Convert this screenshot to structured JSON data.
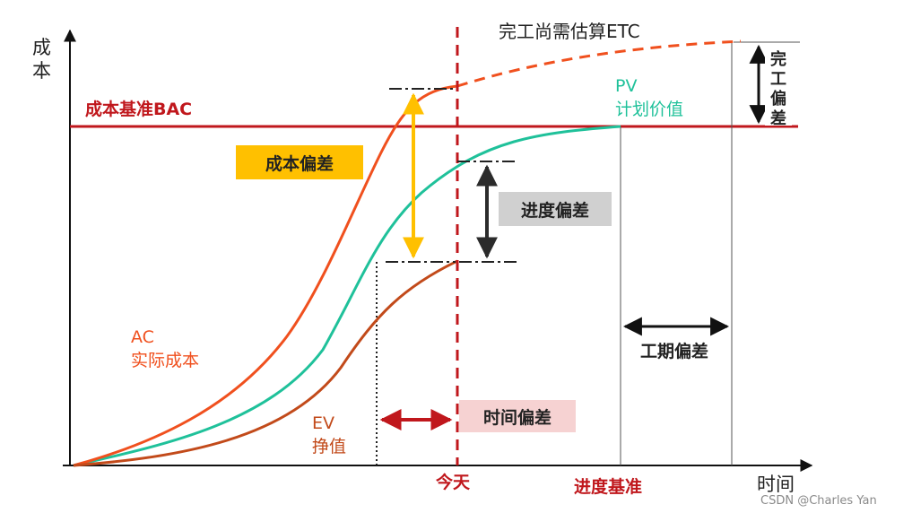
{
  "axes": {
    "y_label_1": "成",
    "y_label_2": "本",
    "x_label": "时间"
  },
  "labels": {
    "bac": "成本基准BAC",
    "etc": "完工尚需估算ETC",
    "pv_code": "PV",
    "pv_name": "计划价值",
    "ac_code": "AC",
    "ac_name": "实际成本",
    "ev_code": "EV",
    "ev_name": "挣值",
    "today": "今天",
    "schedule_baseline": "进度基准"
  },
  "boxes": {
    "cost_variance": "成本偏差",
    "schedule_variance": "进度偏差",
    "time_variance": "时间偏差",
    "duration_variance": "工期偏差",
    "completion_variance_1": "完",
    "completion_variance_2": "工",
    "completion_variance_3": "偏",
    "completion_variance_4": "差"
  },
  "watermark": "CSDN @Charles Yan",
  "colors": {
    "bac": "#c0171c",
    "ac": "#f0501e",
    "pv": "#1fc19a",
    "ev": "#c24a1a",
    "today": "#c0171c",
    "cost_box": "#ffc000",
    "schedule_box": "#d0d0d0",
    "time_box": "#f6d2d2",
    "cost_arrow": "#ffc000",
    "schedule_arrow": "#2b2b2b"
  }
}
